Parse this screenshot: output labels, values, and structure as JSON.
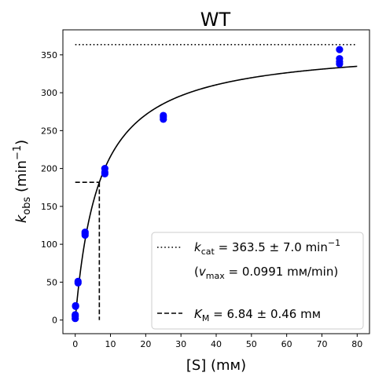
{
  "chart_data": {
    "type": "scatter",
    "title": "WT",
    "xlabel": "[S] (mм)",
    "ylabel": {
      "main": "k",
      "sub": "obs",
      "unit_open": " (min",
      "sup": "−1",
      "unit_close": ")"
    },
    "xlim": [
      -3.5,
      83.5
    ],
    "ylim": [
      -18,
      383
    ],
    "x_ticks": [
      0,
      10,
      20,
      30,
      40,
      50,
      60,
      70,
      80
    ],
    "y_ticks": [
      0,
      50,
      100,
      150,
      200,
      250,
      300,
      350
    ],
    "grid": false,
    "marker_color": "#0000ff",
    "points": [
      {
        "x": 0,
        "y": 2
      },
      {
        "x": 0,
        "y": 5
      },
      {
        "x": 0,
        "y": 7
      },
      {
        "x": 0.1,
        "y": 18
      },
      {
        "x": 0.1,
        "y": 19
      },
      {
        "x": 0.8,
        "y": 49
      },
      {
        "x": 0.8,
        "y": 51
      },
      {
        "x": 2.8,
        "y": 112
      },
      {
        "x": 2.8,
        "y": 114
      },
      {
        "x": 2.8,
        "y": 116
      },
      {
        "x": 8.4,
        "y": 193
      },
      {
        "x": 8.4,
        "y": 195
      },
      {
        "x": 8.4,
        "y": 200
      },
      {
        "x": 25,
        "y": 265
      },
      {
        "x": 25,
        "y": 268
      },
      {
        "x": 25,
        "y": 270
      },
      {
        "x": 75,
        "y": 338
      },
      {
        "x": 75,
        "y": 341
      },
      {
        "x": 75,
        "y": 345
      },
      {
        "x": 75,
        "y": 357
      }
    ],
    "fit": {
      "kcat": 363.5,
      "km": 6.84,
      "x_range": [
        0,
        80
      ]
    },
    "kcat_line": {
      "y": 363.5,
      "x_range": [
        0,
        80
      ]
    },
    "km_lines": {
      "x": 6.84,
      "y": 181.75,
      "x_start": 0
    },
    "legend": {
      "placement": "lower-right",
      "kcat_label": {
        "main": "k",
        "sub": "cat",
        "text": " = 363.5 ± 7.0 min",
        "sup": "−1"
      },
      "vmax_label": {
        "open": "(",
        "main": "v",
        "sub": "max",
        "text": " = 0.0991 mм/min)"
      },
      "km_label": {
        "main": "K",
        "sub": "M",
        "text": " = 6.84 ± 0.46 mм"
      }
    }
  }
}
